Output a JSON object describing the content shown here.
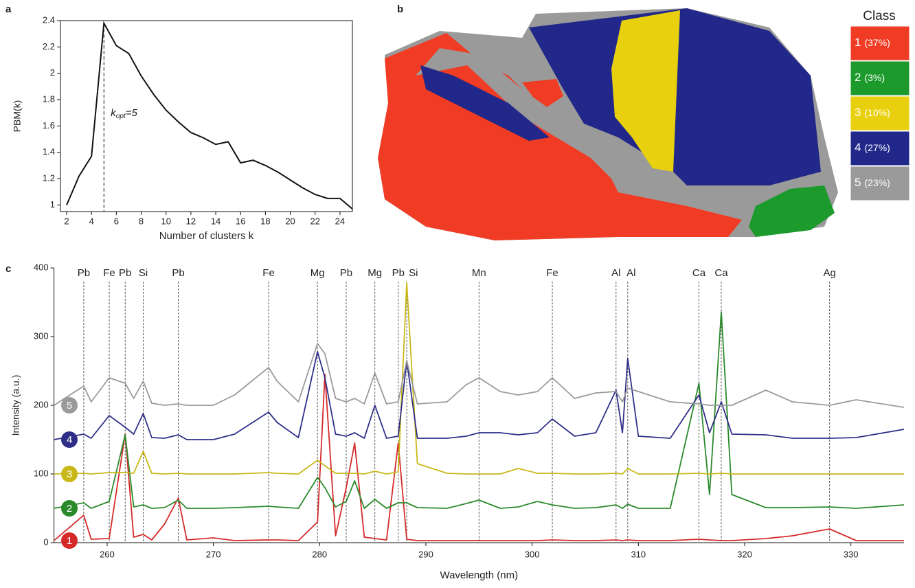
{
  "chart_data": [
    {
      "type": "line",
      "panel": "a",
      "x_label": "Number of clusters k",
      "y_label": "PBM(k)",
      "x": [
        2,
        3,
        4,
        5,
        6,
        7,
        8,
        9,
        10,
        11,
        12,
        13,
        14,
        15,
        16,
        17,
        18,
        19,
        20,
        21,
        22,
        23,
        24,
        25
      ],
      "values": [
        1.0,
        1.22,
        1.37,
        2.38,
        2.21,
        2.15,
        1.98,
        1.84,
        1.72,
        1.63,
        1.55,
        1.51,
        1.46,
        1.48,
        1.32,
        1.34,
        1.3,
        1.25,
        1.19,
        1.13,
        1.08,
        1.05,
        1.05,
        0.97
      ],
      "color": "#111111",
      "xlim": [
        1.5,
        25
      ],
      "ylim": [
        0.95,
        2.4
      ],
      "xticks": [
        2,
        4,
        6,
        8,
        10,
        12,
        14,
        16,
        18,
        20,
        22,
        24
      ],
      "yticks": [
        1,
        1.2,
        1.4,
        1.6,
        1.8,
        2,
        2.2,
        2.4
      ],
      "marker_x": 5,
      "annotation": {
        "text": "k",
        "subscript": "opt",
        "suffix": "=5"
      }
    },
    {
      "type": "map",
      "panel": "b",
      "title": "Class",
      "categories": [
        "1",
        "2",
        "3",
        "4",
        "5"
      ],
      "values": [
        37,
        3,
        10,
        27,
        23
      ],
      "value_labels": [
        "(37%)",
        "(3%)",
        "(10%)",
        "(27%)",
        "(23%)"
      ],
      "colors": [
        "#f03c24",
        "#1c9a2c",
        "#e8d00e",
        "#22288a",
        "#9a9a9a"
      ]
    },
    {
      "type": "spectra",
      "panel": "c",
      "x_label": "Wavelength (nm)",
      "y_label": "Intensity (a.u.)",
      "xlim": [
        255,
        335
      ],
      "ylim": [
        0,
        400
      ],
      "xticks": [
        260,
        270,
        280,
        290,
        300,
        310,
        320,
        330
      ],
      "yticks": [
        0,
        100,
        200,
        300,
        400
      ],
      "lines": [
        {
          "label": "Pb",
          "x": 257.8
        },
        {
          "label": "Fe",
          "x": 260.2
        },
        {
          "label": "Pb",
          "x": 261.7
        },
        {
          "label": "Si",
          "x": 263.4
        },
        {
          "label": "Pb",
          "x": 266.7
        },
        {
          "label": "Fe",
          "x": 275.2
        },
        {
          "label": "Mg",
          "x": 279.8
        },
        {
          "label": "Pb",
          "x": 282.5
        },
        {
          "label": "Mg",
          "x": 285.2
        },
        {
          "label": "Pb",
          "x": 287.4
        },
        {
          "label": "Si",
          "x": 288.2
        },
        {
          "label": "Mn",
          "x": 295
        },
        {
          "label": "Fe",
          "x": 301.9
        },
        {
          "label": "Al",
          "x": 307.9
        },
        {
          "label": "Al",
          "x": 309.0
        },
        {
          "label": "Ca",
          "x": 315.7
        },
        {
          "label": "Ca",
          "x": 317.8
        },
        {
          "label": "Ag",
          "x": 328
        }
      ],
      "x": [
        255,
        257.8,
        258.5,
        260.2,
        261.7,
        262.5,
        263.4,
        264.2,
        265.4,
        266.7,
        267.5,
        270,
        272,
        275.2,
        276,
        278,
        279.8,
        280.5,
        281.5,
        282.5,
        283.3,
        284.2,
        285.2,
        286.3,
        287.4,
        288.2,
        289.2,
        292,
        293.8,
        295,
        297,
        298.7,
        300.5,
        301.9,
        304,
        306,
        307.9,
        308.5,
        309.0,
        310,
        313,
        315.7,
        316.7,
        317.8,
        318.8,
        322,
        324.5,
        328,
        330.5,
        335
      ],
      "series": [
        {
          "name": "1",
          "color": "#d42a2a",
          "values": [
            3,
            40,
            5,
            6,
            158,
            8,
            12,
            4,
            27,
            65,
            4,
            7,
            3,
            4,
            4,
            3,
            30,
            245,
            10,
            80,
            145,
            8,
            6,
            4,
            145,
            5,
            3,
            3,
            3,
            3,
            3,
            3,
            3,
            4,
            3,
            3,
            4,
            3,
            4,
            3,
            3,
            5,
            4,
            3,
            3,
            6,
            10,
            20,
            3,
            3
          ]
        },
        {
          "name": "2",
          "color": "#2a8a2a",
          "values": [
            50,
            58,
            50,
            60,
            157,
            52,
            55,
            50,
            51,
            62,
            50,
            50,
            51,
            53,
            52,
            50,
            95,
            80,
            52,
            60,
            90,
            50,
            63,
            50,
            58,
            58,
            51,
            50,
            57,
            62,
            50,
            52,
            60,
            55,
            50,
            51,
            55,
            50,
            56,
            50,
            50,
            232,
            70,
            336,
            70,
            51,
            51,
            52,
            50,
            55
          ]
        },
        {
          "name": "3",
          "color": "#c8b818",
          "values": [
            100,
            101,
            100,
            102,
            102,
            101,
            133,
            101,
            100,
            101,
            100,
            100,
            100,
            102,
            101,
            100,
            120,
            112,
            101,
            101,
            101,
            100,
            104,
            100,
            103,
            378,
            115,
            101,
            100,
            100,
            100,
            108,
            101,
            101,
            100,
            100,
            101,
            100,
            108,
            100,
            100,
            101,
            100,
            101,
            100,
            100,
            100,
            100,
            100,
            100
          ]
        },
        {
          "name": "4",
          "color": "#2f2f8a",
          "values": [
            150,
            158,
            152,
            185,
            168,
            158,
            188,
            153,
            152,
            157,
            150,
            150,
            158,
            190,
            175,
            153,
            278,
            240,
            158,
            155,
            160,
            152,
            200,
            152,
            155,
            265,
            152,
            152,
            155,
            160,
            160,
            157,
            160,
            180,
            155,
            160,
            222,
            160,
            268,
            155,
            152,
            215,
            160,
            205,
            158,
            157,
            152,
            152,
            153,
            165
          ]
        },
        {
          "name": "5",
          "color": "#9a9a9a",
          "values": [
            200,
            228,
            205,
            240,
            232,
            210,
            235,
            203,
            200,
            202,
            200,
            200,
            215,
            255,
            235,
            205,
            290,
            275,
            210,
            205,
            210,
            202,
            247,
            202,
            205,
            265,
            202,
            205,
            230,
            240,
            220,
            215,
            220,
            240,
            210,
            218,
            220,
            205,
            225,
            220,
            205,
            202,
            200,
            200,
            200,
            222,
            205,
            200,
            208,
            197
          ]
        }
      ]
    }
  ]
}
